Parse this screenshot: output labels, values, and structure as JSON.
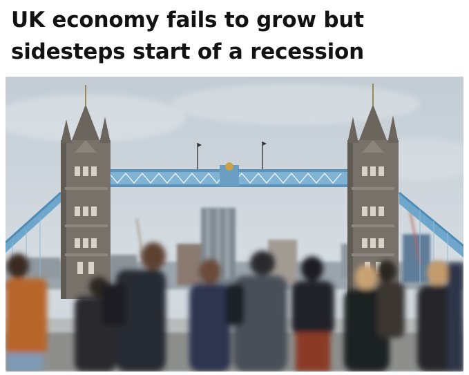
{
  "article": {
    "headline": "UK economy fails to grow but sidesteps start of a recession",
    "image": {
      "subject": "tower-bridge-with-pedestrians"
    }
  },
  "colors": {
    "headline": "#121212",
    "sky": "#c9d3db",
    "bridge_blue": "#7fb2d3",
    "stone": "#77716a"
  }
}
